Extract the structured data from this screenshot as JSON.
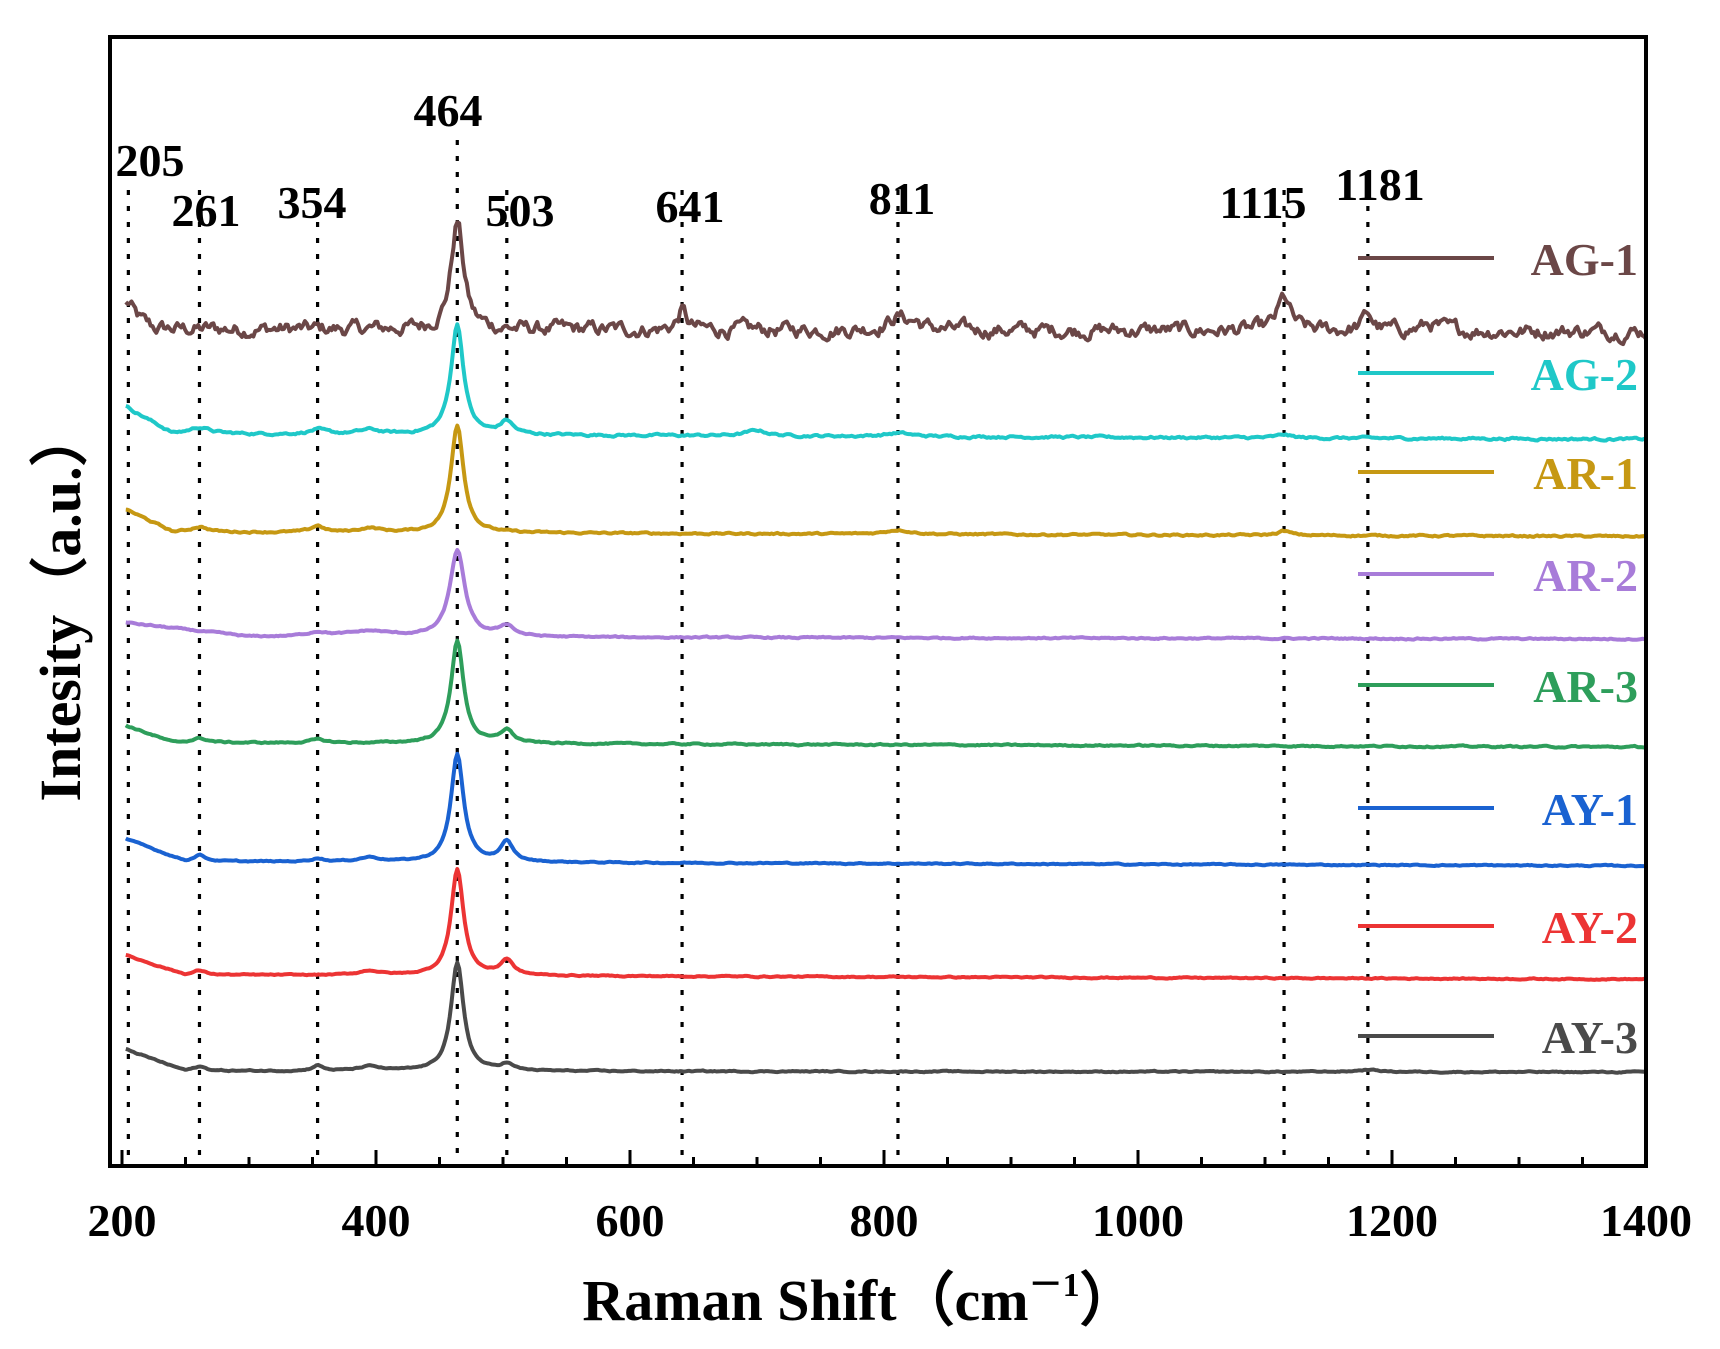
{
  "chart_data": {
    "type": "line",
    "title": "",
    "xlabel": "Raman Shift（cm⁻¹）",
    "xlabel_main": "Raman Shift（cm",
    "xlabel_super": "－1",
    "xlabel_close": "）",
    "ylabel": "Intesity（a.u.）",
    "xlim": [
      200,
      1400
    ],
    "x_ticks": [
      200,
      400,
      600,
      800,
      1000,
      1200,
      1400
    ],
    "x_tick_labels": [
      "200",
      "400",
      "600",
      "800",
      "1000",
      "1200",
      "1400"
    ],
    "grid": false,
    "legend_position": "right",
    "peak_lines": [
      205,
      261,
      354,
      464,
      503,
      641,
      811,
      1115,
      1181
    ],
    "peak_labels": [
      "205",
      "261",
      "354",
      "464",
      "503",
      "641",
      "811",
      "1115",
      "1181"
    ],
    "series": [
      {
        "name": "AG-1",
        "color": "#6b4747",
        "offset": 7.6,
        "noise": 0.05,
        "baseline": [
          [
            203,
            0.15
          ],
          [
            225,
            0.02
          ],
          [
            1400,
            0.0
          ]
        ],
        "peaks": [
          [
            205,
            0.12,
            5
          ],
          [
            464,
            1.0,
            6
          ],
          [
            641,
            0.18,
            4
          ],
          [
            811,
            0.12,
            10
          ],
          [
            825,
            0.05,
            6
          ],
          [
            1115,
            0.3,
            6
          ],
          [
            1181,
            0.15,
            5
          ],
          [
            1230,
            0.06,
            8
          ]
        ]
      },
      {
        "name": "AG-2",
        "color": "#1fc8c8",
        "offset": 6.6,
        "noise": 0.008,
        "baseline": [
          [
            203,
            0.3
          ],
          [
            240,
            0.05
          ],
          [
            1400,
            0.0
          ]
        ],
        "peaks": [
          [
            261,
            0.06,
            10
          ],
          [
            354,
            0.04,
            8
          ],
          [
            395,
            0.04,
            10
          ],
          [
            464,
            1.02,
            6
          ],
          [
            503,
            0.12,
            6
          ],
          [
            700,
            0.05,
            10
          ],
          [
            811,
            0.03,
            12
          ],
          [
            1115,
            0.03,
            6
          ]
        ]
      },
      {
        "name": "AR-1",
        "color": "#c69813",
        "offset": 5.7,
        "noise": 0.006,
        "baseline": [
          [
            203,
            0.25
          ],
          [
            240,
            0.04
          ],
          [
            1400,
            0.0
          ]
        ],
        "peaks": [
          [
            261,
            0.05,
            8
          ],
          [
            354,
            0.06,
            6
          ],
          [
            395,
            0.04,
            10
          ],
          [
            464,
            1.0,
            6
          ],
          [
            811,
            0.04,
            12
          ],
          [
            1115,
            0.04,
            6
          ]
        ]
      },
      {
        "name": "AR-2",
        "color": "#a87cd9",
        "offset": 4.75,
        "noise": 0.005,
        "baseline": [
          [
            203,
            0.15
          ],
          [
            300,
            0.02
          ],
          [
            1400,
            0.0
          ]
        ],
        "peaks": [
          [
            354,
            0.04,
            10
          ],
          [
            395,
            0.05,
            20
          ],
          [
            464,
            0.8,
            7
          ],
          [
            503,
            0.1,
            7
          ]
        ]
      },
      {
        "name": "AR-3",
        "color": "#2e9e5b",
        "offset": 3.75,
        "noise": 0.005,
        "baseline": [
          [
            203,
            0.2
          ],
          [
            240,
            0.04
          ],
          [
            1400,
            0.0
          ]
        ],
        "peaks": [
          [
            261,
            0.04,
            8
          ],
          [
            354,
            0.03,
            8
          ],
          [
            464,
            0.95,
            6
          ],
          [
            503,
            0.12,
            6
          ]
        ]
      },
      {
        "name": "AY-1",
        "color": "#1a62d1",
        "offset": 2.65,
        "noise": 0.004,
        "baseline": [
          [
            203,
            0.25
          ],
          [
            250,
            0.04
          ],
          [
            1400,
            0.0
          ]
        ],
        "peaks": [
          [
            261,
            0.06,
            6
          ],
          [
            354,
            0.03,
            6
          ],
          [
            395,
            0.04,
            10
          ],
          [
            464,
            1.0,
            6
          ],
          [
            503,
            0.18,
            6
          ]
        ]
      },
      {
        "name": "AY-2",
        "color": "#ec3434",
        "offset": 1.6,
        "noise": 0.004,
        "baseline": [
          [
            203,
            0.22
          ],
          [
            250,
            0.04
          ],
          [
            1400,
            0.0
          ]
        ],
        "peaks": [
          [
            261,
            0.04,
            6
          ],
          [
            395,
            0.04,
            10
          ],
          [
            464,
            0.98,
            6
          ],
          [
            503,
            0.14,
            6
          ]
        ]
      },
      {
        "name": "AY-3",
        "color": "#4a4a4a",
        "offset": 0.7,
        "noise": 0.004,
        "baseline": [
          [
            203,
            0.25
          ],
          [
            250,
            0.05
          ],
          [
            1400,
            0.04
          ]
        ],
        "peaks": [
          [
            261,
            0.04,
            6
          ],
          [
            354,
            0.05,
            5
          ],
          [
            395,
            0.04,
            10
          ],
          [
            464,
            1.0,
            6
          ],
          [
            503,
            0.06,
            6
          ],
          [
            1181,
            0.02,
            10
          ]
        ]
      }
    ]
  }
}
